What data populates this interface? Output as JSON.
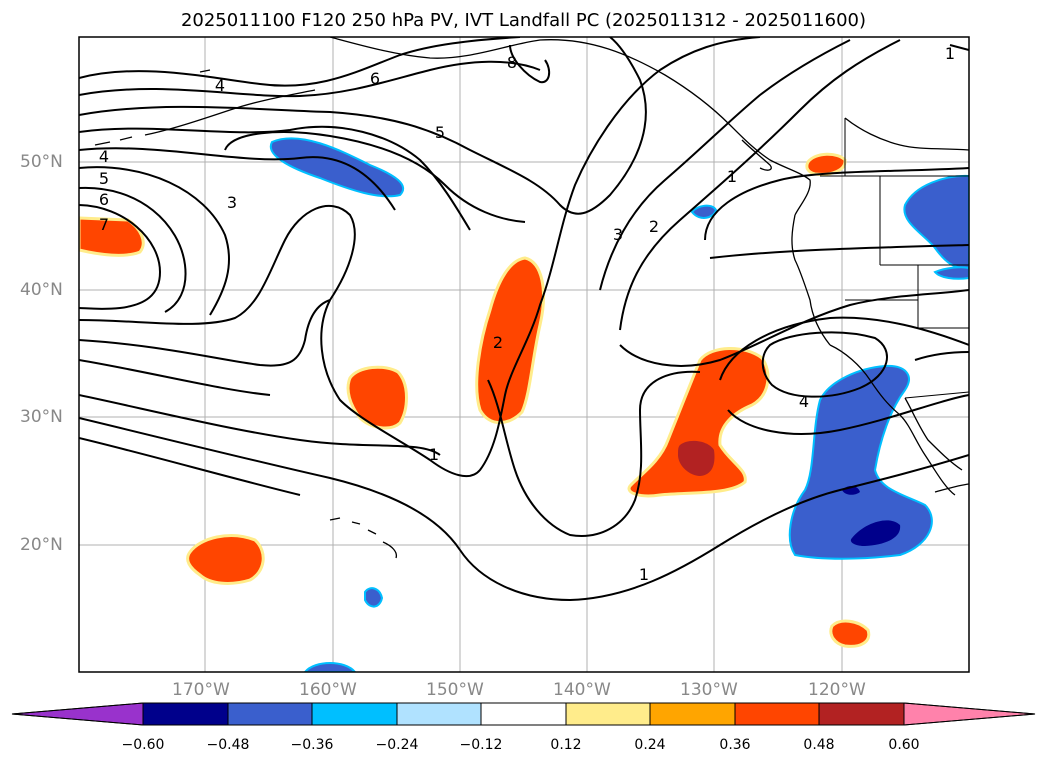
{
  "title": "2025011100 F120 250 hPa PV, IVT Landfall PC (2025011312 - 2025011600)",
  "lat_labels": [
    "50°N",
    "40°N",
    "30°N",
    "20°N"
  ],
  "lon_labels": [
    "170°W",
    "160°W",
    "150°W",
    "140°W",
    "130°W",
    "120°W"
  ],
  "colorbar": {
    "ticks": [
      "−0.60",
      "−0.48",
      "−0.36",
      "−0.24",
      "−0.12",
      "0.12",
      "0.24",
      "0.36",
      "0.48",
      "0.60"
    ],
    "colors": [
      "#9932CC",
      "#00008B",
      "#3A5FCD",
      "#00BFFF",
      "#B0E2FF",
      "#FFFFFF",
      "#FFEC8B",
      "#FFA500",
      "#FF4500",
      "#B22222",
      "#FF82AB"
    ]
  },
  "contour_labels": [
    "4",
    "6",
    "8",
    "5",
    "4",
    "5",
    "6",
    "7",
    "3",
    "3",
    "2",
    "1",
    "2",
    "1",
    "4",
    "1",
    "1"
  ]
}
